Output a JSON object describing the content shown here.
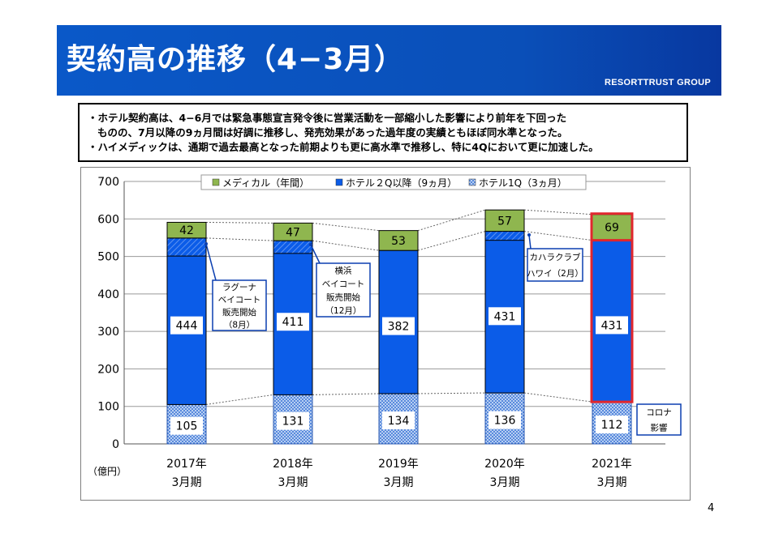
{
  "page": {
    "title": "契約高の推移（4−3月）",
    "brand": "RESORTTRUST GROUP",
    "page_number": "4"
  },
  "notes": [
    "・ホテル契約高は、4−6月では緊急事態宣言発令後に営業活動を一部縮小した影響により前年を下回った",
    "ものの、7月以降の9ヵ月間は好調に推移し、発売効果があった過年度の実績ともほぼ同水準となった。",
    "・ハイメディックは、通期で過去最高となった前期よりも更に高水準で推移し、特に4Qにおいて更に加速した。"
  ],
  "chart_data": {
    "type": "bar",
    "stacked": true,
    "unit_label": "（億円）",
    "ylim": [
      0,
      700
    ],
    "y_ticks": [
      0,
      100,
      200,
      300,
      400,
      500,
      600,
      700
    ],
    "categories": [
      [
        "2017年",
        "3月期"
      ],
      [
        "2018年",
        "3月期"
      ],
      [
        "2019年",
        "3月期"
      ],
      [
        "2020年",
        "3月期"
      ],
      [
        "2021年",
        "3月期"
      ]
    ],
    "legend": [
      "メディカル（年間）",
      "ホテル２Q以降（9ヵ月）",
      "ホテル1Q（3ヵ月）"
    ],
    "legend_position": "top",
    "series": [
      {
        "name": "ホテル1Q（3ヵ月）",
        "values": [
          105,
          131,
          134,
          136,
          112
        ],
        "color": "#3a73d6",
        "pattern": "dots"
      },
      {
        "name": "ホテル２Q以降（9ヵ月）",
        "values": [
          444,
          411,
          382,
          431,
          431
        ],
        "color": "#0b5ce8"
      },
      {
        "name": "メディカル（年間）",
        "values": [
          42,
          47,
          53,
          57,
          69
        ],
        "color": "#8fb64f"
      }
    ],
    "hatched_top_of_hotel": [
      48,
      34,
      0,
      24,
      0
    ],
    "highlight_index": 4,
    "highlight_color": "#e0262d",
    "callouts": [
      {
        "lines": [
          "ラグーナ",
          "ベイコート",
          "販売開始",
          "（8月）"
        ],
        "bar": 0
      },
      {
        "lines": [
          "横浜",
          "ベイコート",
          "販売開始",
          "（12月）"
        ],
        "bar": 1
      },
      {
        "lines": [
          "カハラクラブ",
          "ハワイ（2月）"
        ],
        "bar": 3
      },
      {
        "lines": [
          "コロナ",
          "影響"
        ],
        "bar": 4
      }
    ]
  }
}
